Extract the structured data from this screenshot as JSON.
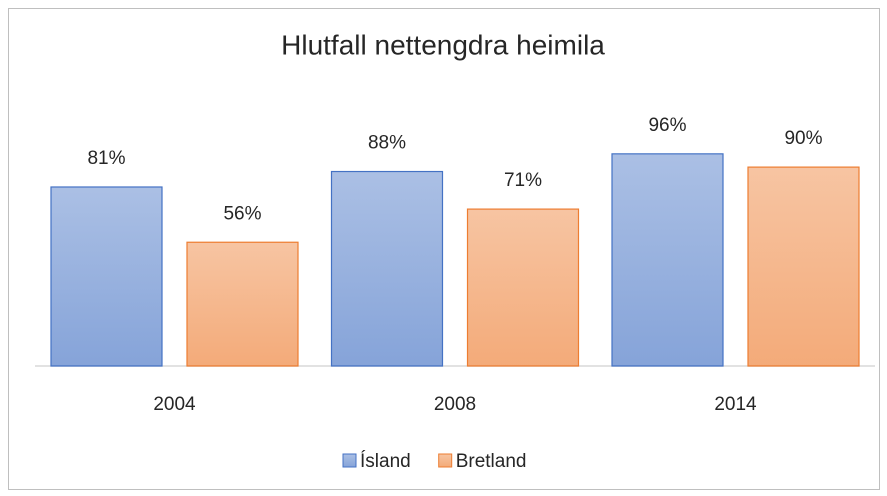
{
  "chart_data": {
    "type": "bar",
    "title": "Hlutfall nettengdra heimila",
    "categories": [
      "2004",
      "2008",
      "2014"
    ],
    "series": [
      {
        "name": "Ísland",
        "color": "#4472c4",
        "values": [
          81,
          88,
          96
        ],
        "value_labels": [
          "81%",
          "88%",
          "96%"
        ]
      },
      {
        "name": "Bretland",
        "color": "#ed7d31",
        "values": [
          56,
          71,
          90
        ],
        "value_labels": [
          "56%",
          "71%",
          "90%"
        ]
      }
    ],
    "legend": "bottom"
  }
}
